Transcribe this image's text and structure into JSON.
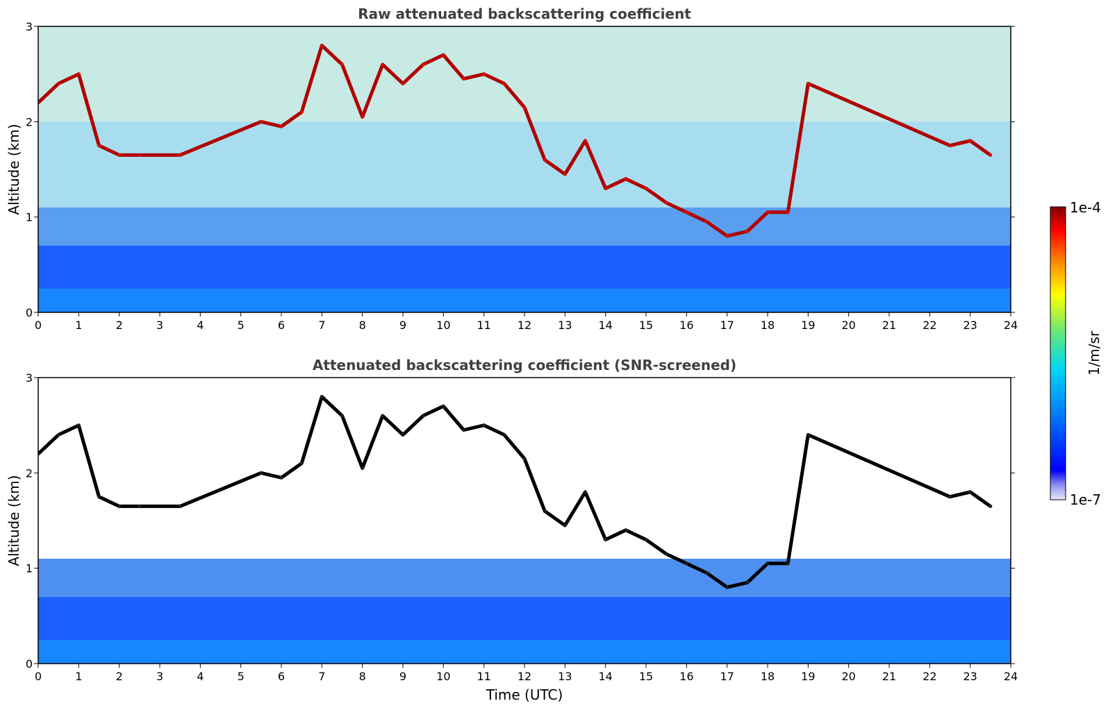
{
  "chart_data": [
    {
      "type": "heatmap",
      "title": "Raw attenuated backscattering coefficient",
      "xlabel": "",
      "ylabel": "Altitude (km)",
      "xlim": [
        0,
        24
      ],
      "ylim": [
        0,
        3
      ],
      "xticks": [
        "0",
        "1",
        "2",
        "3",
        "4",
        "5",
        "6",
        "7",
        "8",
        "9",
        "10",
        "11",
        "12",
        "13",
        "14",
        "15",
        "16",
        "17",
        "18",
        "19",
        "20",
        "21",
        "22",
        "23",
        "24"
      ],
      "yticks": [
        "0",
        "1",
        "2",
        "3"
      ],
      "screening": "none",
      "cloud_layer": [
        {
          "x": 0.0,
          "y": 2.2
        },
        {
          "x": 0.5,
          "y": 2.4
        },
        {
          "x": 1.0,
          "y": 2.5
        },
        {
          "x": 1.5,
          "y": 1.75
        },
        {
          "x": 2.0,
          "y": 1.65
        },
        {
          "x": 2.5,
          "y": 1.65
        },
        {
          "x": 3.5,
          "y": 1.65
        },
        {
          "x": 5.5,
          "y": 2.0
        },
        {
          "x": 6.0,
          "y": 1.95
        },
        {
          "x": 6.5,
          "y": 2.1
        },
        {
          "x": 7.0,
          "y": 2.8
        },
        {
          "x": 7.5,
          "y": 2.6
        },
        {
          "x": 8.0,
          "y": 2.05
        },
        {
          "x": 8.5,
          "y": 2.6
        },
        {
          "x": 9.0,
          "y": 2.4
        },
        {
          "x": 9.5,
          "y": 2.6
        },
        {
          "x": 10.0,
          "y": 2.7
        },
        {
          "x": 10.5,
          "y": 2.45
        },
        {
          "x": 11.0,
          "y": 2.5
        },
        {
          "x": 11.5,
          "y": 2.4
        },
        {
          "x": 12.0,
          "y": 2.15
        },
        {
          "x": 12.5,
          "y": 1.6
        },
        {
          "x": 13.0,
          "y": 1.45
        },
        {
          "x": 13.5,
          "y": 1.8
        },
        {
          "x": 14.0,
          "y": 1.3
        },
        {
          "x": 14.5,
          "y": 1.4
        },
        {
          "x": 15.0,
          "y": 1.3
        },
        {
          "x": 15.5,
          "y": 1.15
        },
        {
          "x": 16.0,
          "y": 1.05
        },
        {
          "x": 16.5,
          "y": 0.95
        },
        {
          "x": 17.0,
          "y": 0.8
        },
        {
          "x": 17.5,
          "y": 0.85
        },
        {
          "x": 18.0,
          "y": 1.05
        },
        {
          "x": 18.5,
          "y": 1.05
        },
        {
          "x": 19.0,
          "y": 2.4
        },
        {
          "x": 22.5,
          "y": 1.75
        },
        {
          "x": 23.0,
          "y": 1.8
        },
        {
          "x": 23.5,
          "y": 1.65
        }
      ]
    },
    {
      "type": "heatmap",
      "title": "Attenuated backscattering coefficient (SNR-screened)",
      "xlabel": "Time (UTC)",
      "ylabel": "Altitude (km)",
      "xlim": [
        0,
        24
      ],
      "ylim": [
        0,
        3
      ],
      "xticks": [
        "0",
        "1",
        "2",
        "3",
        "4",
        "5",
        "6",
        "7",
        "8",
        "9",
        "10",
        "11",
        "12",
        "13",
        "14",
        "15",
        "16",
        "17",
        "18",
        "19",
        "20",
        "21",
        "22",
        "23",
        "24"
      ],
      "yticks": [
        "0",
        "1",
        "2",
        "3"
      ],
      "screening": "SNR",
      "cloud_layer": [
        {
          "x": 0.0,
          "y": 2.2
        },
        {
          "x": 0.5,
          "y": 2.4
        },
        {
          "x": 1.0,
          "y": 2.5
        },
        {
          "x": 1.5,
          "y": 1.75
        },
        {
          "x": 2.0,
          "y": 1.65
        },
        {
          "x": 2.5,
          "y": 1.65
        },
        {
          "x": 3.5,
          "y": 1.65
        },
        {
          "x": 5.5,
          "y": 2.0
        },
        {
          "x": 6.0,
          "y": 1.95
        },
        {
          "x": 6.5,
          "y": 2.1
        },
        {
          "x": 7.0,
          "y": 2.8
        },
        {
          "x": 7.5,
          "y": 2.6
        },
        {
          "x": 8.0,
          "y": 2.05
        },
        {
          "x": 8.5,
          "y": 2.6
        },
        {
          "x": 9.0,
          "y": 2.4
        },
        {
          "x": 9.5,
          "y": 2.6
        },
        {
          "x": 10.0,
          "y": 2.7
        },
        {
          "x": 10.5,
          "y": 2.45
        },
        {
          "x": 11.0,
          "y": 2.5
        },
        {
          "x": 11.5,
          "y": 2.4
        },
        {
          "x": 12.0,
          "y": 2.15
        },
        {
          "x": 12.5,
          "y": 1.6
        },
        {
          "x": 13.0,
          "y": 1.45
        },
        {
          "x": 13.5,
          "y": 1.8
        },
        {
          "x": 14.0,
          "y": 1.3
        },
        {
          "x": 14.5,
          "y": 1.4
        },
        {
          "x": 15.0,
          "y": 1.3
        },
        {
          "x": 15.5,
          "y": 1.15
        },
        {
          "x": 16.0,
          "y": 1.05
        },
        {
          "x": 16.5,
          "y": 0.95
        },
        {
          "x": 17.0,
          "y": 0.8
        },
        {
          "x": 17.5,
          "y": 0.85
        },
        {
          "x": 18.0,
          "y": 1.05
        },
        {
          "x": 18.5,
          "y": 1.05
        },
        {
          "x": 19.0,
          "y": 2.4
        },
        {
          "x": 22.5,
          "y": 1.75
        },
        {
          "x": 23.0,
          "y": 1.8
        },
        {
          "x": 23.5,
          "y": 1.65
        }
      ]
    }
  ],
  "colorbar": {
    "label": "1/m/sr",
    "max_label": "1e-4",
    "min_label": "1e-7",
    "scale": "log",
    "colormap": [
      "#e8e8f8",
      "#0000ff",
      "#0080ff",
      "#00d8f0",
      "#70e870",
      "#ffff00",
      "#ff8000",
      "#ff0000",
      "#800000"
    ]
  }
}
